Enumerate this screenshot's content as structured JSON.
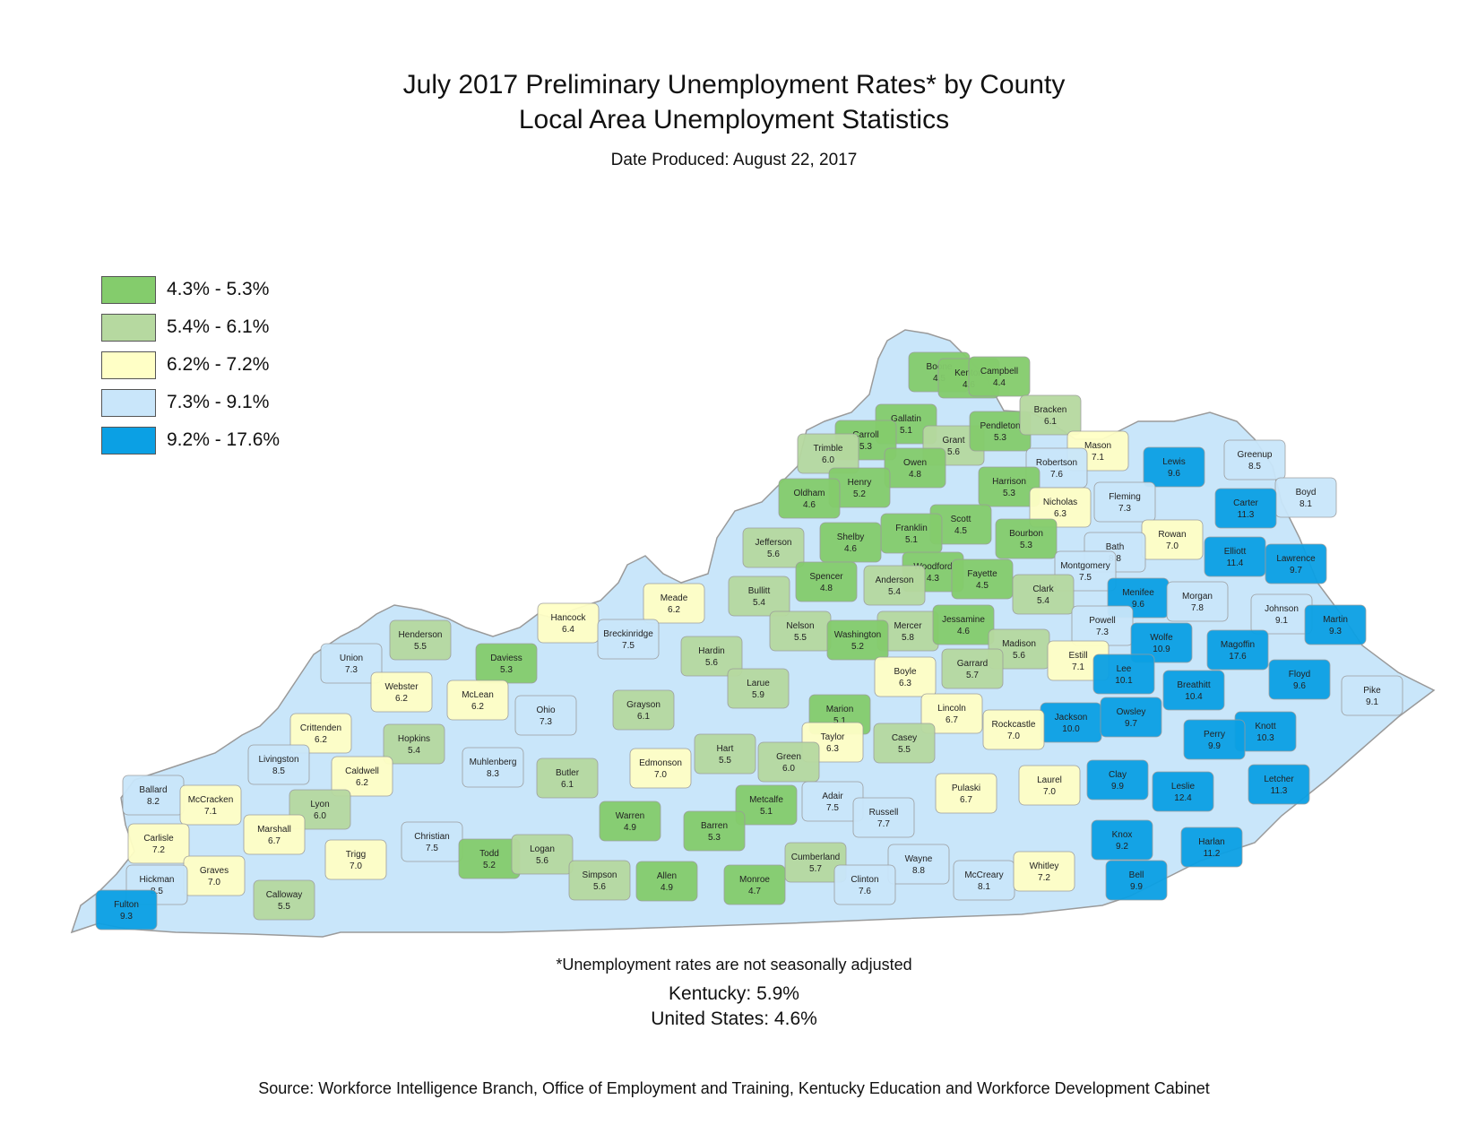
{
  "title": "July 2017 Preliminary Unemployment Rates* by County",
  "subtitle": "Local Area Unemployment Statistics",
  "date_produced": "Date Produced:  August 22, 2017",
  "legend": [
    {
      "label": "4.3% - 5.3%",
      "color": "#84cc6c"
    },
    {
      "label": "5.4% - 6.1%",
      "color": "#b6d9a0"
    },
    {
      "label": "6.2% - 7.2%",
      "color": "#ffffc6"
    },
    {
      "label": "7.3% - 9.1%",
      "color": "#c9e6fa"
    },
    {
      "label": "9.2% - 17.6%",
      "color": "#0ba0e4"
    }
  ],
  "counties": [
    {
      "name": "Boone",
      "rate": "4.5"
    },
    {
      "name": "Kenton",
      "rate": "4.6"
    },
    {
      "name": "Campbell",
      "rate": "4.4"
    },
    {
      "name": "Gallatin",
      "rate": "5.1"
    },
    {
      "name": "Grant",
      "rate": "5.6"
    },
    {
      "name": "Pendleton",
      "rate": "5.3"
    },
    {
      "name": "Bracken",
      "rate": "6.1"
    },
    {
      "name": "Carroll",
      "rate": "5.3"
    },
    {
      "name": "Trimble",
      "rate": "6.0"
    },
    {
      "name": "Owen",
      "rate": "4.8"
    },
    {
      "name": "Mason",
      "rate": "7.1"
    },
    {
      "name": "Lewis",
      "rate": "9.6"
    },
    {
      "name": "Greenup",
      "rate": "8.5"
    },
    {
      "name": "Robertson",
      "rate": "7.6"
    },
    {
      "name": "Harrison",
      "rate": "5.3"
    },
    {
      "name": "Henry",
      "rate": "5.2"
    },
    {
      "name": "Oldham",
      "rate": "4.6"
    },
    {
      "name": "Boyd",
      "rate": "8.1"
    },
    {
      "name": "Carter",
      "rate": "11.3"
    },
    {
      "name": "Fleming",
      "rate": "7.3"
    },
    {
      "name": "Nicholas",
      "rate": "6.3"
    },
    {
      "name": "Scott",
      "rate": "4.5"
    },
    {
      "name": "Franklin",
      "rate": "5.1"
    },
    {
      "name": "Shelby",
      "rate": "4.6"
    },
    {
      "name": "Jefferson",
      "rate": "5.6"
    },
    {
      "name": "Bourbon",
      "rate": "5.3"
    },
    {
      "name": "Rowan",
      "rate": "7.0"
    },
    {
      "name": "Elliott",
      "rate": "11.4"
    },
    {
      "name": "Lawrence",
      "rate": "9.7"
    },
    {
      "name": "Bath",
      "rate": "8.8"
    },
    {
      "name": "Woodford",
      "rate": "4.3"
    },
    {
      "name": "Spencer",
      "rate": "4.8"
    },
    {
      "name": "Anderson",
      "rate": "5.4"
    },
    {
      "name": "Fayette",
      "rate": "4.5"
    },
    {
      "name": "Montgomery",
      "rate": "7.5"
    },
    {
      "name": "Meade",
      "rate": "6.2"
    },
    {
      "name": "Bullitt",
      "rate": "5.4"
    },
    {
      "name": "Clark",
      "rate": "5.4"
    },
    {
      "name": "Menifee",
      "rate": "9.6"
    },
    {
      "name": "Morgan",
      "rate": "7.8"
    },
    {
      "name": "Johnson",
      "rate": "9.1"
    },
    {
      "name": "Hancock",
      "rate": "6.4"
    },
    {
      "name": "Mercer",
      "rate": "5.8"
    },
    {
      "name": "Jessamine",
      "rate": "4.6"
    },
    {
      "name": "Powell",
      "rate": "7.3"
    },
    {
      "name": "Martin",
      "rate": "9.3"
    },
    {
      "name": "Henderson",
      "rate": "5.5"
    },
    {
      "name": "Breckinridge",
      "rate": "7.5"
    },
    {
      "name": "Nelson",
      "rate": "5.5"
    },
    {
      "name": "Washington",
      "rate": "5.2"
    },
    {
      "name": "Wolfe",
      "rate": "10.9"
    },
    {
      "name": "Magoffin",
      "rate": "17.6"
    },
    {
      "name": "Daviess",
      "rate": "5.3"
    },
    {
      "name": "Hardin",
      "rate": "5.6"
    },
    {
      "name": "Madison",
      "rate": "5.6"
    },
    {
      "name": "Estill",
      "rate": "7.1"
    },
    {
      "name": "Union",
      "rate": "7.3"
    },
    {
      "name": "Garrard",
      "rate": "5.7"
    },
    {
      "name": "Boyle",
      "rate": "6.3"
    },
    {
      "name": "Floyd",
      "rate": "9.6"
    },
    {
      "name": "Lee",
      "rate": "10.1"
    },
    {
      "name": "Breathitt",
      "rate": "10.4"
    },
    {
      "name": "Webster",
      "rate": "6.2"
    },
    {
      "name": "Larue",
      "rate": "5.9"
    },
    {
      "name": "Marion",
      "rate": "5.1"
    },
    {
      "name": "Pike",
      "rate": "9.1"
    },
    {
      "name": "McLean",
      "rate": "6.2"
    },
    {
      "name": "Ohio",
      "rate": "7.3"
    },
    {
      "name": "Grayson",
      "rate": "6.1"
    },
    {
      "name": "Lincoln",
      "rate": "6.7"
    },
    {
      "name": "Jackson",
      "rate": "10.0"
    },
    {
      "name": "Owsley",
      "rate": "9.7"
    },
    {
      "name": "Crittenden",
      "rate": "6.2"
    },
    {
      "name": "Hopkins",
      "rate": "5.4"
    },
    {
      "name": "Rockcastle",
      "rate": "7.0"
    },
    {
      "name": "Knott",
      "rate": "10.3"
    },
    {
      "name": "Taylor",
      "rate": "6.3"
    },
    {
      "name": "Casey",
      "rate": "5.5"
    },
    {
      "name": "Perry",
      "rate": "9.9"
    },
    {
      "name": "Hart",
      "rate": "5.5"
    },
    {
      "name": "Green",
      "rate": "6.0"
    },
    {
      "name": "Muhlenberg",
      "rate": "8.3"
    },
    {
      "name": "Livingston",
      "rate": "8.5"
    },
    {
      "name": "Caldwell",
      "rate": "6.2"
    },
    {
      "name": "Edmonson",
      "rate": "7.0"
    },
    {
      "name": "Butler",
      "rate": "6.1"
    },
    {
      "name": "Ballard",
      "rate": "8.2"
    },
    {
      "name": "McCracken",
      "rate": "7.1"
    },
    {
      "name": "Clay",
      "rate": "9.9"
    },
    {
      "name": "Laurel",
      "rate": "7.0"
    },
    {
      "name": "Leslie",
      "rate": "12.4"
    },
    {
      "name": "Letcher",
      "rate": "11.3"
    },
    {
      "name": "Adair",
      "rate": "7.5"
    },
    {
      "name": "Pulaski",
      "rate": "6.7"
    },
    {
      "name": "Lyon",
      "rate": "6.0"
    },
    {
      "name": "Marshall",
      "rate": "6.7"
    },
    {
      "name": "Christian",
      "rate": "7.5"
    },
    {
      "name": "Metcalfe",
      "rate": "5.1"
    },
    {
      "name": "Russell",
      "rate": "7.7"
    },
    {
      "name": "Warren",
      "rate": "4.9"
    },
    {
      "name": "Barren",
      "rate": "5.3"
    },
    {
      "name": "Carlisle",
      "rate": "7.2"
    },
    {
      "name": "Knox",
      "rate": "9.2"
    },
    {
      "name": "Harlan",
      "rate": "11.2"
    },
    {
      "name": "Todd",
      "rate": "5.2"
    },
    {
      "name": "Trigg",
      "rate": "7.0"
    },
    {
      "name": "Logan",
      "rate": "5.6"
    },
    {
      "name": "Cumberland",
      "rate": "5.7"
    },
    {
      "name": "Wayne",
      "rate": "8.8"
    },
    {
      "name": "Graves",
      "rate": "7.0"
    },
    {
      "name": "Simpson",
      "rate": "5.6"
    },
    {
      "name": "Allen",
      "rate": "4.9"
    },
    {
      "name": "Monroe",
      "rate": "4.7"
    },
    {
      "name": "Clinton",
      "rate": "7.6"
    },
    {
      "name": "McCreary",
      "rate": "8.1"
    },
    {
      "name": "Whitley",
      "rate": "7.2"
    },
    {
      "name": "Bell",
      "rate": "9.9"
    },
    {
      "name": "Hickman",
      "rate": "8.5"
    },
    {
      "name": "Calloway",
      "rate": "5.5"
    },
    {
      "name": "Fulton",
      "rate": "9.3"
    }
  ],
  "footnote": "*Unemployment rates are not seasonally adjusted",
  "kentucky_rate": "Kentucky: 5.9%",
  "us_rate": "United States: 4.6%",
  "source": "Source: Workforce Intelligence Branch, Office of Employment and Training, Kentucky Education and Workforce Development Cabinet"
}
